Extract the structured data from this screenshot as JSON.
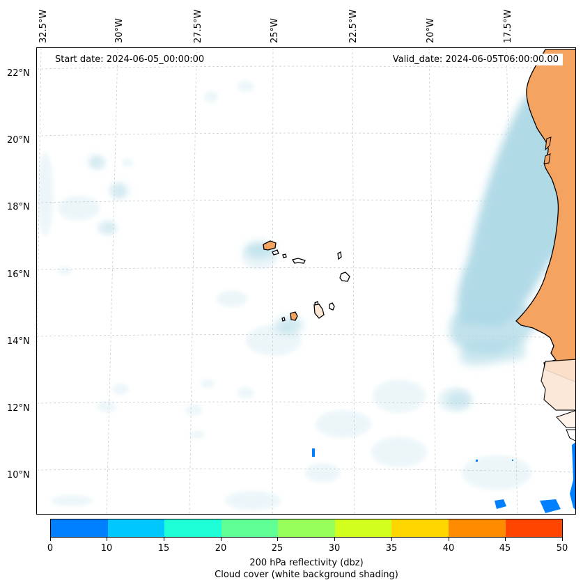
{
  "map": {
    "lon_labels": [
      "32.5°W",
      "30°W",
      "27.5°W",
      "25°W",
      "22.5°W",
      "20°W",
      "17.5°W"
    ],
    "lat_labels": [
      "22°N",
      "20°N",
      "18°N",
      "16°N",
      "14°N",
      "12°N",
      "10°N"
    ],
    "start_date": "Start date: 2024-06-05_00:00:00",
    "valid_date": "Valid_date: 2024-06-05T06:00:00.00",
    "land_color": "#f4a460",
    "cloud_color": "#add8e6",
    "coastline_color": "#000000",
    "gridline_color": "#cccccc"
  },
  "colorbar": {
    "tick_labels": [
      "0",
      "10",
      "15",
      "20",
      "25",
      "30",
      "35",
      "40",
      "45",
      "50"
    ],
    "colors": [
      "#0080ff",
      "#00c8ff",
      "#1effd7",
      "#60ff96",
      "#96ff5a",
      "#d2ff1e",
      "#ffd700",
      "#ff8c00",
      "#ff4500"
    ],
    "title_line1": "200 hPa reflectivity (dbz)",
    "title_line2": "Cloud cover (white background shading)"
  }
}
